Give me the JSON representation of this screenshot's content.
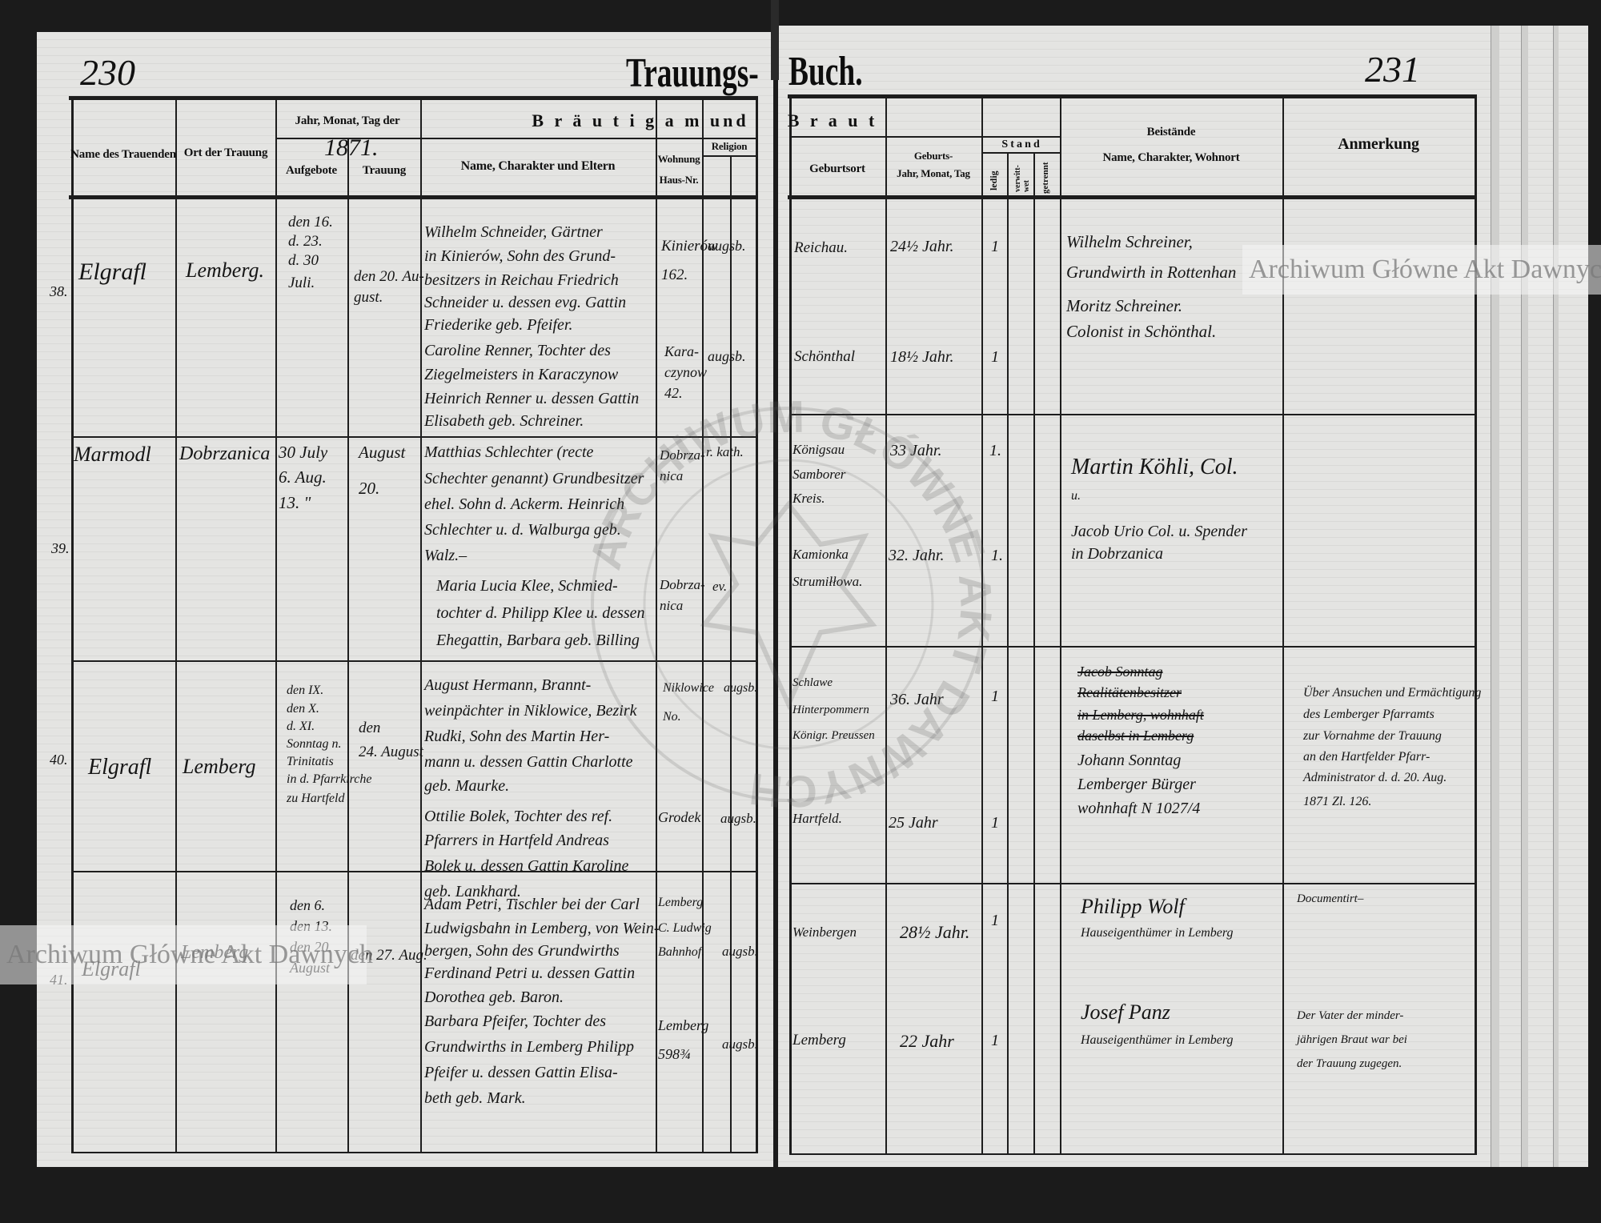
{
  "header": {
    "page_left": "230",
    "page_right": "231",
    "title_left": "Trauungs-",
    "title_right": "Buch.",
    "col_name_officiant": "Name des Trauenden",
    "col_place": "Ort der Trauung",
    "col_date_group": "Jahr, Monat, Tag der",
    "year": "1871.",
    "col_banns": "Aufgebote",
    "col_wedding": "Trauung",
    "group_groom": "B r ä u t i g a m   und",
    "col_groom_name": "Name, Charakter und Eltern",
    "col_residence_1": "Wohnung",
    "col_residence_2": "Haus-Nr.",
    "col_religion": "Religion",
    "group_bride": "B r a u t",
    "col_birthplace": "Geburtsort",
    "col_birth_1": "Geburts-",
    "col_birth_2": "Jahr, Monat, Tag",
    "col_status": "S t a n d",
    "col_single": "ledig",
    "col_widowed": "verwitt-wet",
    "col_separated": "getrennt",
    "col_witnesses": "Beistände",
    "col_witnesses_sub": "Name, Charakter, Wohnort",
    "col_remarks": "Anmerkung"
  },
  "entries": [
    {
      "no": "38.",
      "officiant": "Elgrafl",
      "place": "Lemberg.",
      "banns": [
        "den 16.",
        "d. 23.",
        "d. 30",
        "Juli."
      ],
      "wedding": [
        "den 20. Au-",
        "gust."
      ],
      "groom": [
        "Wilhelm Schneider, Gärtner",
        "in Kinierów, Sohn des Grund-",
        "besitzers in Reichau Friedrich",
        "Schneider u. dessen evg. Gattin",
        "Friederike geb. Pfeifer."
      ],
      "bride": [
        "Caroline Renner, Tochter des",
        "Ziegelmeisters in Karaczynow",
        "Heinrich Renner u. dessen Gattin",
        "Elisabeth geb. Schreiner."
      ],
      "groom_residence": [
        "Kinierów",
        "162."
      ],
      "groom_religion": "augsb.",
      "bride_residence": [
        "Kara-",
        "czynow",
        "42."
      ],
      "bride_religion": "augsb.",
      "groom_birthplace": [
        "Reichau."
      ],
      "groom_age": "24½ Jahr.",
      "groom_single": "1",
      "bride_birthplace": [
        "Schönthal"
      ],
      "bride_age": "18½ Jahr.",
      "bride_single": "1",
      "witnesses_struck": [],
      "witnesses": [
        "Wilhelm Schreiner,",
        "Grundwirth in Rottenhan",
        "Moritz Schreiner.",
        "Colonist in Schönthal."
      ],
      "remarks": []
    },
    {
      "no": "39.",
      "officiant": "Marmodl",
      "place": "Dobrzanica",
      "banns": [
        "30 July",
        "6. Aug.",
        "13. \""
      ],
      "wedding": [
        "August",
        "20."
      ],
      "groom": [
        "Matthias Schlechter (recte",
        "Schechter genannt) Grundbesitzer",
        "ehel. Sohn d. Ackerm. Heinrich",
        "Schlechter u. d. Walburga geb.",
        "Walz.–"
      ],
      "bride": [
        "Maria Lucia Klee, Schmied-",
        "tochter d. Philipp Klee u. dessen",
        "Ehegattin, Barbara geb. Billing"
      ],
      "groom_residence": [
        "Dobrza-",
        "nica"
      ],
      "groom_religion": "r. kath.",
      "bride_residence": [
        "Dobrza-",
        "nica"
      ],
      "bride_religion": "ev.",
      "groom_birthplace": [
        "Königsau",
        "Samborer",
        "Kreis."
      ],
      "groom_age": "33 Jahr.",
      "groom_single": "1.",
      "bride_birthplace": [
        "Kamionka",
        "Strumiłłowa."
      ],
      "bride_age": "32. Jahr.",
      "bride_single": "1.",
      "witnesses_struck": [],
      "witnesses": [
        "Martin Köhli, Col.",
        "u.",
        "Jacob Urio Col. u. Spender",
        "in Dobrzanica"
      ],
      "remarks": []
    },
    {
      "no": "40.",
      "officiant": "Elgrafl",
      "place": "Lemberg",
      "banns": [
        "den IX.",
        "den X.",
        "d. XI.",
        "Sonntag n.",
        "Trinitatis",
        "in d. Pfarrkirche",
        "zu Hartfeld"
      ],
      "wedding": [
        "den",
        "24. August"
      ],
      "groom": [
        "August Hermann, Brannt-",
        "weinpächter in Niklowice, Bezirk",
        "Rudki, Sohn des Martin Her-",
        "mann u. dessen Gattin Charlotte",
        "geb. Maurke."
      ],
      "bride": [
        "Ottilie Bolek, Tochter des ref.",
        "Pfarrers in Hartfeld Andreas",
        "Bolek u. dessen Gattin Karoline",
        "geb. Lankhard."
      ],
      "groom_residence": [
        "Niklowice",
        "No."
      ],
      "groom_religion": "augsb.",
      "bride_residence": [
        "Grodek"
      ],
      "bride_religion": "augsb.",
      "groom_birthplace": [
        "Schlawe",
        "Hinterpommern",
        "Königr. Preussen"
      ],
      "groom_age": "36. Jahr",
      "groom_single": "1",
      "bride_birthplace": [
        "Hartfeld."
      ],
      "bride_age": "25 Jahr",
      "bride_single": "1",
      "witnesses_struck": [
        "Jacob Sonntag",
        "Realitätenbesitzer",
        "in Lemberg, wohnhaft",
        "daselbst in Lemberg"
      ],
      "witnesses": [
        "Johann Sonntag",
        "Lemberger Bürger",
        "wohnhaft N 1027/4"
      ],
      "remarks": [
        "Über Ansuchen und Ermächtigung",
        "des Lemberger Pfarramts",
        "zur Vornahme der Trauung",
        "an den Hartfelder Pfarr-",
        "Administrator d. d. 20. Aug.",
        "1871 Zl. 126."
      ]
    },
    {
      "no": "41.",
      "officiant": "Elgrafl",
      "place": "Lemberg",
      "banns": [
        "den 6.",
        "den 13.",
        "den 20.",
        "August"
      ],
      "wedding": [
        "den 27. Aug."
      ],
      "groom": [
        "Adam Petri, Tischler bei der Carl",
        "Ludwigsbahn in Lemberg, von Wein-",
        "bergen, Sohn des Grundwirths",
        "Ferdinand Petri u. dessen Gattin",
        "Dorothea geb. Baron."
      ],
      "bride": [
        "Barbara Pfeifer, Tochter des",
        "Grundwirths in Lemberg Philipp",
        "Pfeifer u. dessen Gattin Elisa-",
        "beth geb. Mark."
      ],
      "groom_residence": [
        "Lemberg",
        "C. Ludwig",
        "Bahnhof."
      ],
      "groom_religion": "augsb.",
      "bride_residence": [
        "Lemberg",
        "598¾"
      ],
      "bride_religion": "augsb.",
      "groom_birthplace": [
        "Weinbergen"
      ],
      "groom_age": "28½ Jahr.",
      "groom_single": "1",
      "bride_birthplace": [
        "Lemberg"
      ],
      "bride_age": "22 Jahr",
      "bride_single": "1",
      "witnesses_struck": [],
      "witnesses": [
        "Philipp Wolf",
        "Hauseigenthümer in Lemberg",
        "Josef Panz",
        "Hauseigenthümer in Lemberg"
      ],
      "remarks": [
        "Documentirt–",
        "Der Vater der minder-",
        "jährigen Braut war bei",
        "der Trauung zugegen."
      ]
    }
  ],
  "watermark": {
    "text_right": "Archiwum Główne Akt Dawnych",
    "text_left": "Archiwum Główne Akt Dawnych",
    "stamp_text": "ARCHIWUM GŁÓWNE AKT DAWNYCH"
  },
  "colors": {
    "paper": "#e4e4e2",
    "ink": "#151515",
    "background": "#1b1b1b"
  }
}
